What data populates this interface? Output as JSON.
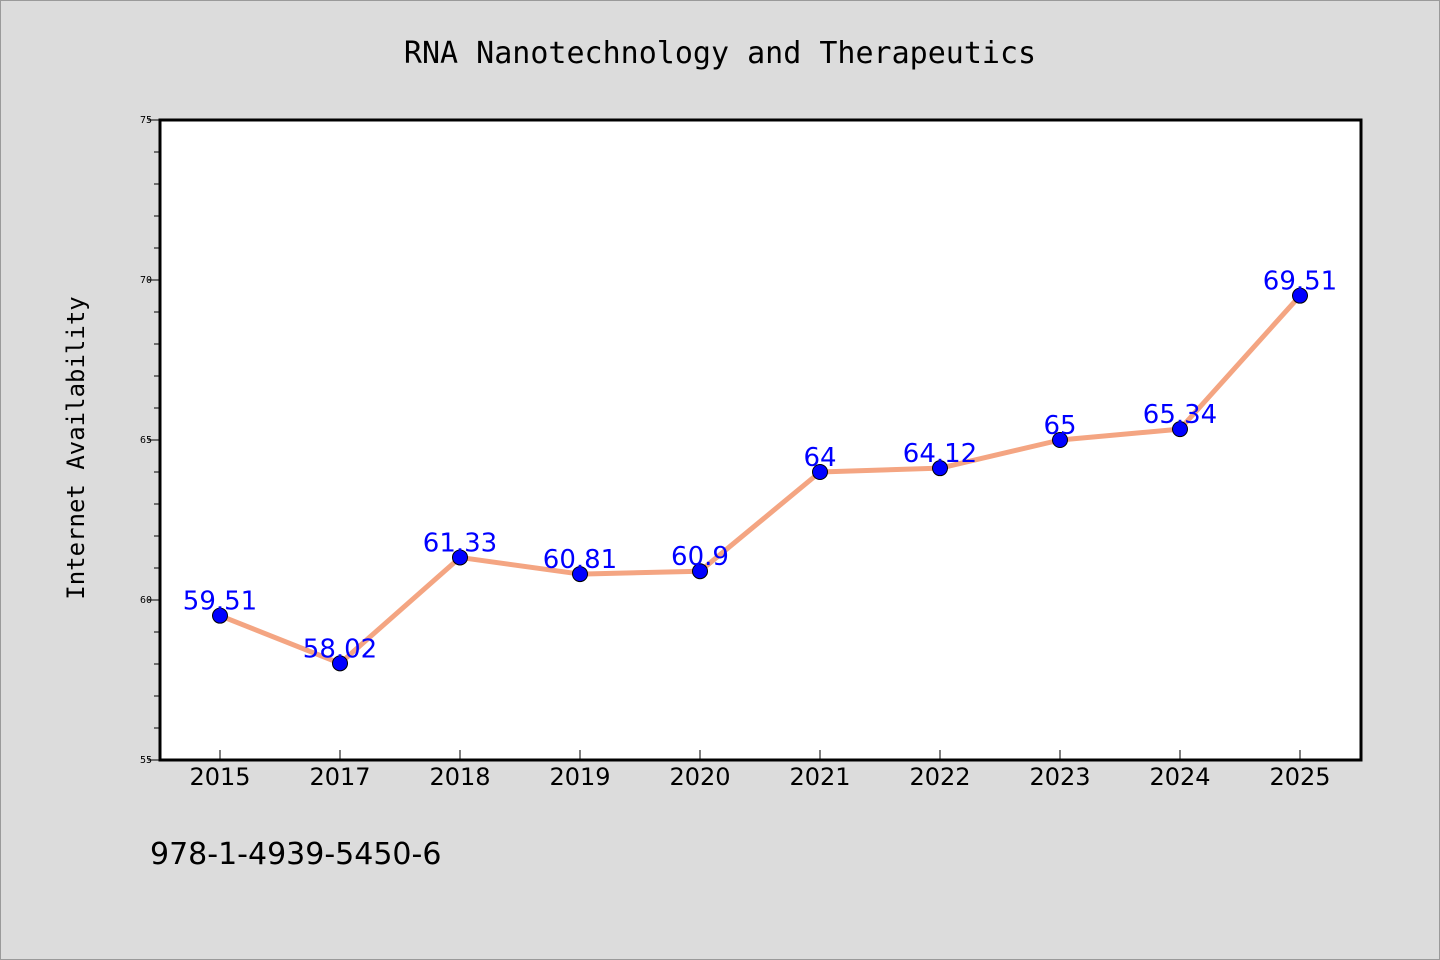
{
  "chart_data": {
    "type": "line",
    "title": "RNA Nanotechnology and Therapeutics",
    "xlabel": "",
    "ylabel": "Internet Availability",
    "categories": [
      "2015",
      "2017",
      "2018",
      "2019",
      "2020",
      "2021",
      "2022",
      "2023",
      "2024",
      "2025"
    ],
    "series": [
      {
        "values": [
          59.51,
          58.02,
          61.33,
          60.81,
          60.9,
          64,
          64.12,
          65,
          65.34,
          69.51
        ]
      }
    ],
    "data_labels": [
      "59.51",
      "58.02",
      "61.33",
      "60.81",
      "60.9",
      "64",
      "64.12",
      "65",
      "65.34",
      "69.51"
    ],
    "ylim": [
      55,
      75
    ],
    "yticks": [
      "55",
      "60",
      "65",
      "70",
      "75"
    ],
    "grid": false,
    "legend": "none",
    "colors": {
      "line": "#f4a582",
      "marker": "#0000ff",
      "label": "#0000ff",
      "background": "#dcdcdc",
      "plot_background": "#ffffff"
    }
  },
  "footer": {
    "isbn": "978-1-4939-5450-6"
  }
}
